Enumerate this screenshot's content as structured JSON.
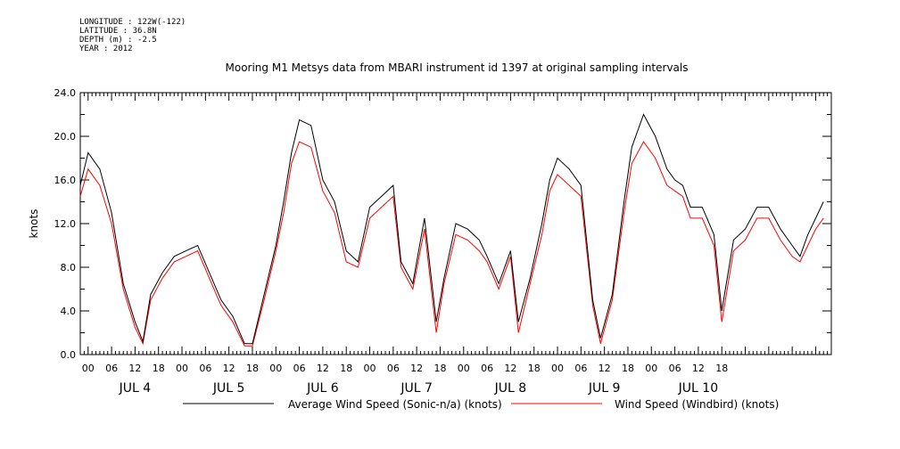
{
  "header": {
    "longitude": "LONGITUDE : 122W(-122)",
    "latitude": "LATITUDE : 36.8N",
    "depth": "DEPTH (m) : -2.5",
    "year": "YEAR : 2012"
  },
  "chart_data": {
    "type": "line",
    "title": "Mooring M1 Metsys data from MBARI instrument id 1397 at original sampling intervals",
    "ylabel": "knots",
    "xlabel": "",
    "ylim": [
      0,
      24
    ],
    "y_ticks": [
      "0.0",
      "4.0",
      "8.0",
      "12.0",
      "16.0",
      "20.0",
      "24.0"
    ],
    "x_unit": "hours since JUL 4 00:00",
    "xlim": [
      -2,
      190
    ],
    "x_hour_ticks": [
      "00",
      "06",
      "12",
      "18",
      "00",
      "06",
      "12",
      "18",
      "00",
      "06",
      "12",
      "18",
      "00",
      "06",
      "12",
      "18",
      "00",
      "06",
      "12",
      "18",
      "00",
      "06",
      "12",
      "18",
      "00",
      "06",
      "12",
      "18"
    ],
    "x_day_labels": [
      "JUL 4",
      "JUL 5",
      "JUL 6",
      "JUL 7",
      "JUL 8",
      "JUL 9",
      "JUL 10"
    ],
    "grid": false,
    "legend_position": "bottom",
    "x": [
      -2,
      0,
      3,
      6,
      9,
      12,
      14,
      16,
      19,
      22,
      25,
      28,
      31,
      34,
      37,
      40,
      42,
      45,
      48,
      50,
      52,
      54,
      57,
      60,
      63,
      66,
      69,
      72,
      75,
      78,
      80,
      83,
      86,
      89,
      91,
      94,
      97,
      100,
      102,
      105,
      108,
      110,
      113,
      116,
      118,
      120,
      123,
      126,
      129,
      131,
      134,
      137,
      139,
      142,
      145,
      148,
      150,
      152,
      154,
      157,
      160,
      162,
      165,
      168,
      171,
      174,
      177,
      180,
      182,
      184,
      186,
      188
    ],
    "series": [
      {
        "name": "Average Wind Speed (Sonic-n/a) (knots)",
        "color": "#000000",
        "values": [
          15.5,
          18.5,
          17.0,
          13.0,
          6.5,
          3.0,
          1.2,
          5.5,
          7.5,
          9.0,
          9.5,
          10.0,
          7.5,
          5.0,
          3.5,
          1.0,
          1.0,
          5.5,
          10.0,
          14.0,
          18.5,
          21.5,
          21.0,
          16.0,
          14.0,
          9.5,
          8.5,
          13.5,
          14.5,
          15.5,
          8.5,
          6.5,
          12.5,
          3.0,
          7.0,
          12.0,
          11.5,
          10.5,
          9.0,
          6.5,
          9.5,
          3.0,
          7.0,
          12.0,
          16.0,
          18.0,
          17.0,
          15.5,
          5.0,
          1.5,
          5.5,
          14.0,
          19.0,
          22.0,
          20.0,
          17.0,
          16.0,
          15.5,
          13.5,
          13.5,
          11.0,
          4.0,
          10.5,
          11.5,
          13.5,
          13.5,
          11.5,
          10.0,
          9.0,
          11.0,
          12.5,
          14.0
        ]
      },
      {
        "name": "Wind Speed (Windbird) (knots)",
        "color": "#ff0000",
        "values": [
          14.5,
          17.0,
          15.5,
          12.0,
          6.0,
          2.5,
          1.0,
          5.0,
          7.0,
          8.5,
          9.0,
          9.5,
          7.0,
          4.5,
          3.0,
          0.8,
          0.8,
          5.0,
          9.5,
          13.0,
          17.5,
          19.5,
          19.0,
          15.0,
          13.0,
          8.5,
          8.0,
          12.5,
          13.5,
          14.5,
          8.0,
          6.0,
          11.5,
          2.0,
          6.5,
          11.0,
          10.5,
          9.5,
          8.5,
          6.0,
          9.0,
          2.0,
          6.5,
          11.0,
          15.0,
          16.5,
          15.5,
          14.5,
          4.5,
          1.0,
          5.0,
          13.0,
          17.5,
          19.5,
          18.0,
          15.5,
          15.0,
          14.5,
          12.5,
          12.5,
          10.0,
          3.0,
          9.5,
          10.5,
          12.5,
          12.5,
          10.5,
          9.0,
          8.5,
          10.0,
          11.5,
          12.5
        ]
      }
    ]
  }
}
